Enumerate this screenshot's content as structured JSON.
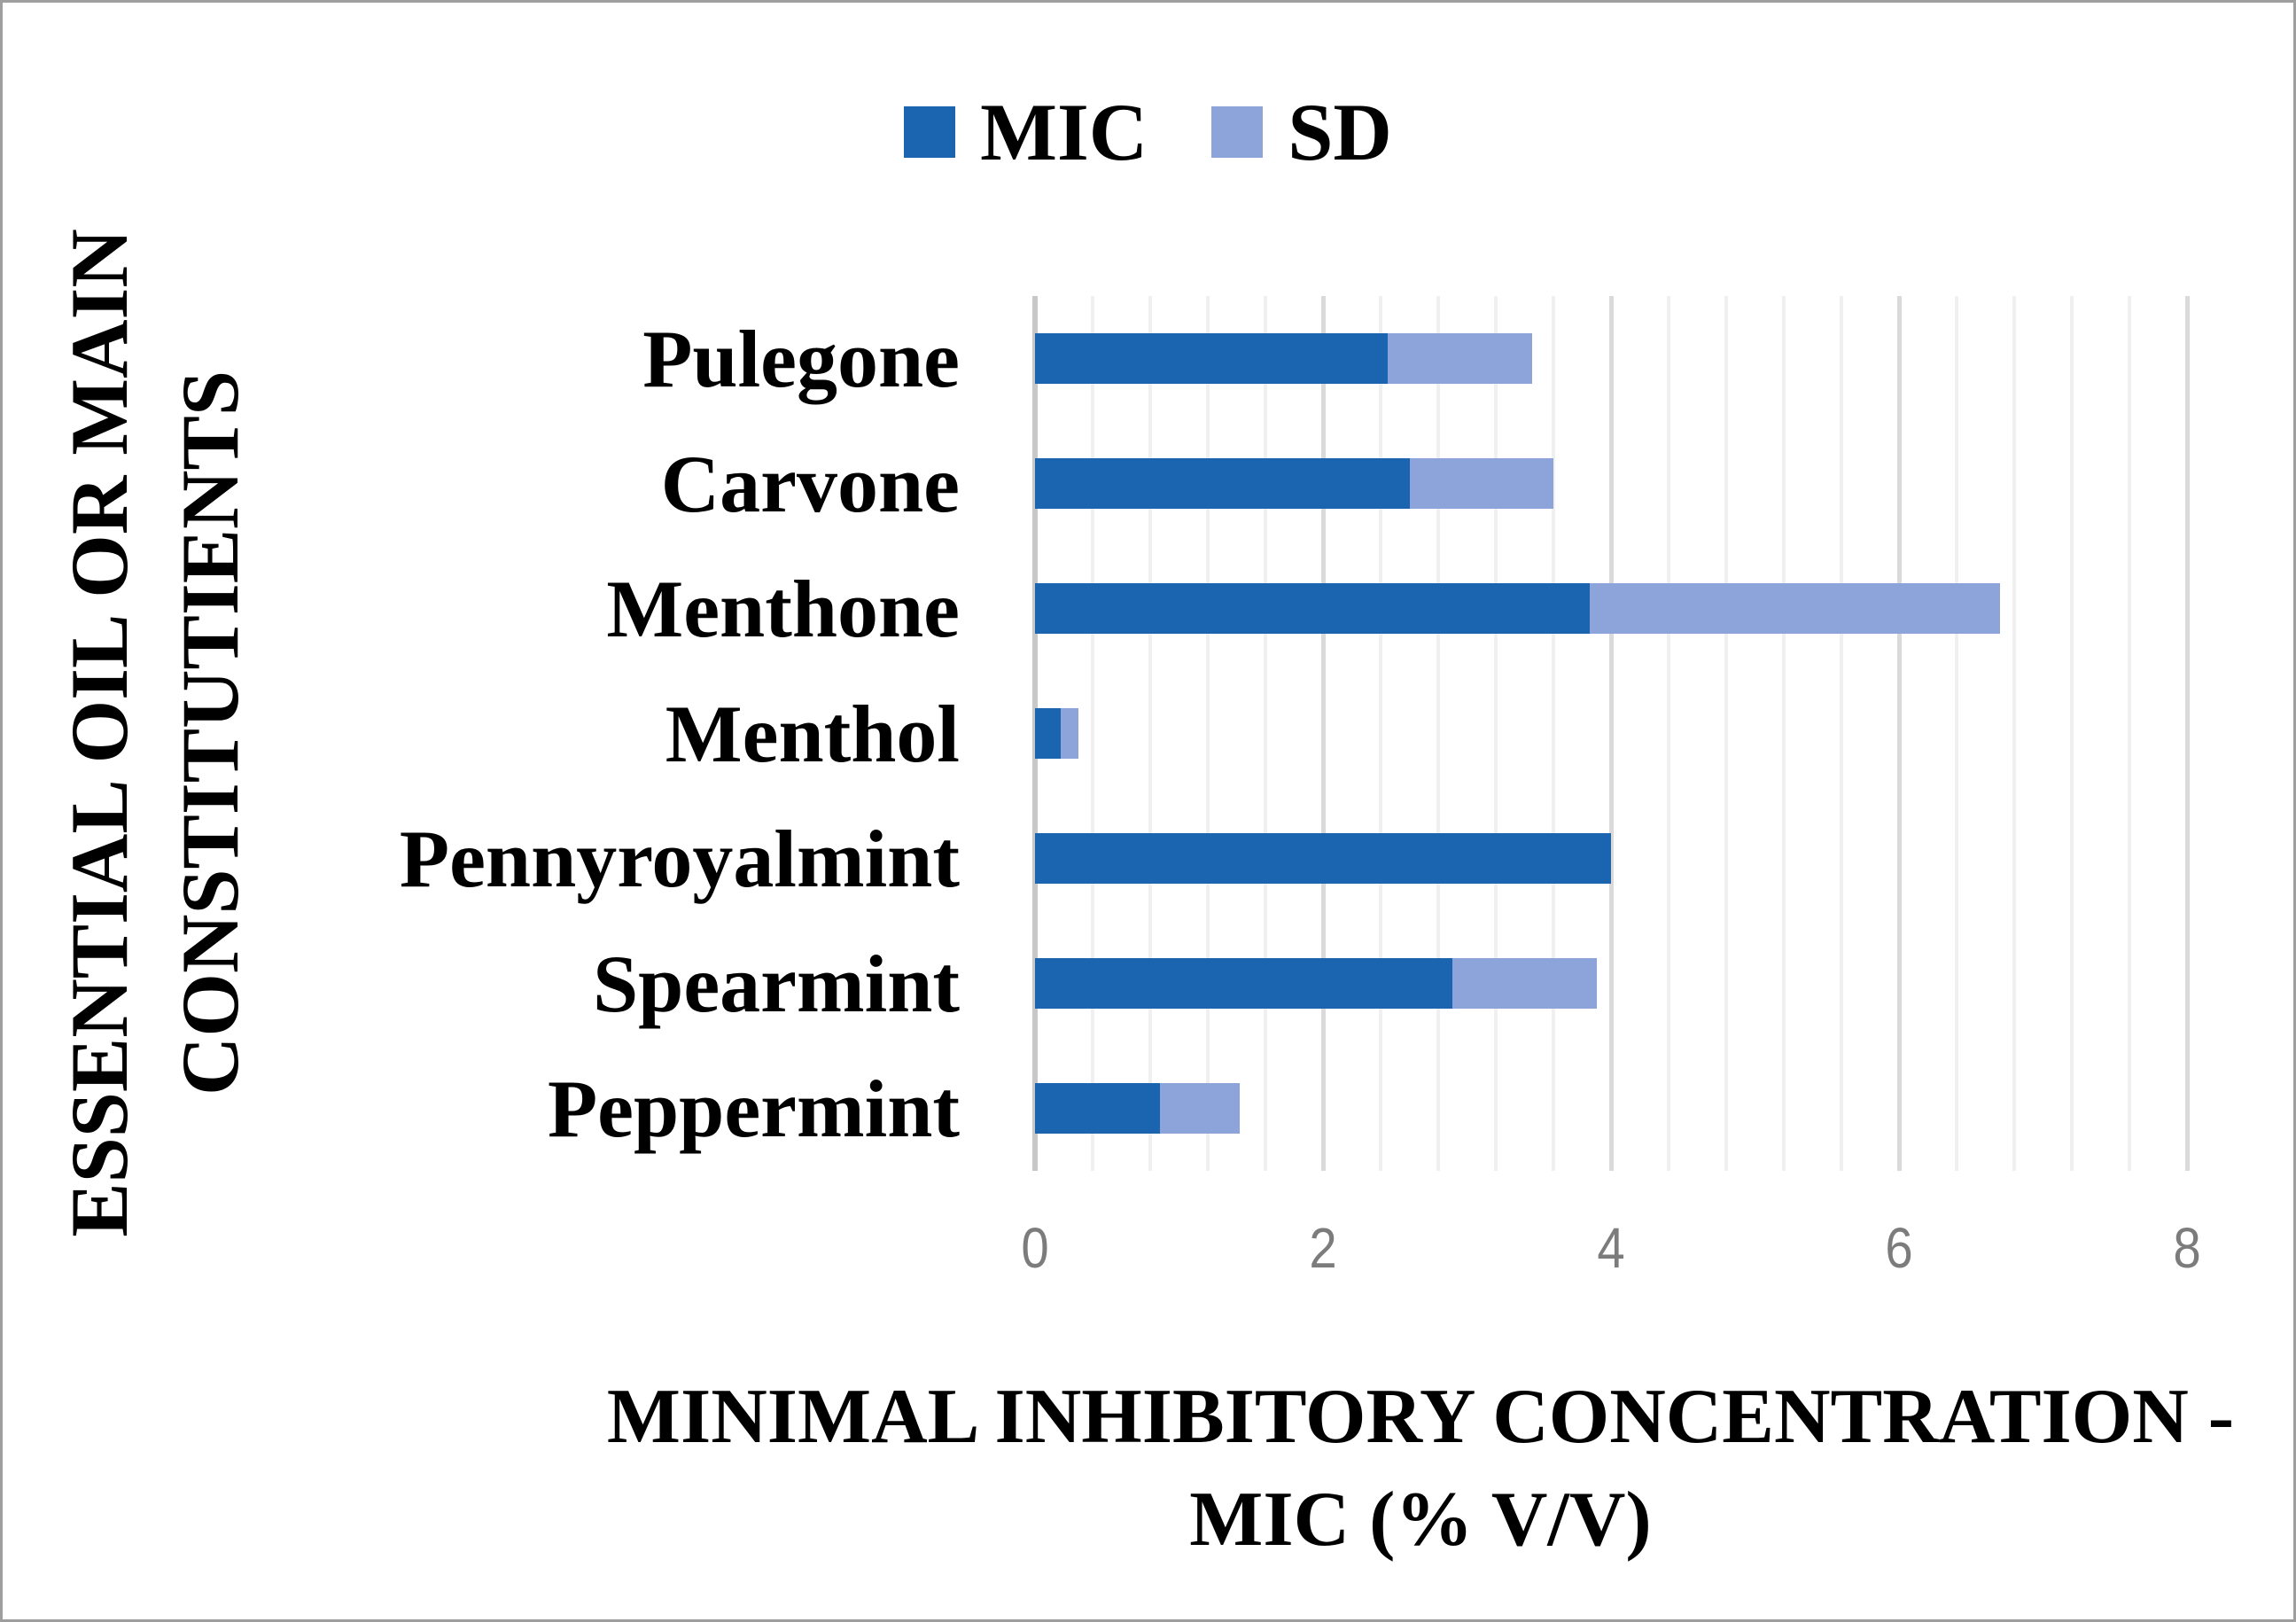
{
  "legend": {
    "items": [
      {
        "label": "MIC",
        "color": "#1A64B0"
      },
      {
        "label": "SD",
        "color": "#8DA4DB"
      }
    ]
  },
  "chart_data": {
    "type": "bar",
    "orientation": "horizontal-stacked",
    "title": "",
    "categories": [
      "Pulegone",
      "Carvone",
      "Menthone",
      "Menthol",
      "Pennyroyalmint",
      "Spearmint",
      "Peppermint"
    ],
    "series": [
      {
        "name": "MIC",
        "color": "#1A64B0",
        "values": [
          2.45,
          2.6,
          3.85,
          0.18,
          4.0,
          2.9,
          0.87
        ]
      },
      {
        "name": "SD",
        "color": "#8DA4DB",
        "values": [
          1.0,
          1.0,
          2.85,
          0.12,
          0,
          1.0,
          0.55
        ]
      }
    ],
    "xlabel_lines": [
      "MINIMAL INHIBITORY CONCENTRATION -",
      "MIC (% V/V)"
    ],
    "ylabel_lines": [
      "ESSENTIAL OIL OR MAIN",
      "CONSTITUTIENTS"
    ],
    "xlim": [
      0,
      8
    ],
    "xticks": [
      0,
      2,
      4,
      6,
      8
    ],
    "minor_unit": 0.4,
    "grid": "vertical-only",
    "legend_position": "top-center",
    "colors": {
      "grid_minor": "#f0f0f0",
      "grid_major": "#dadada",
      "axis_line": "#c8c8c8",
      "tick_text": "#7c7c7c"
    }
  }
}
